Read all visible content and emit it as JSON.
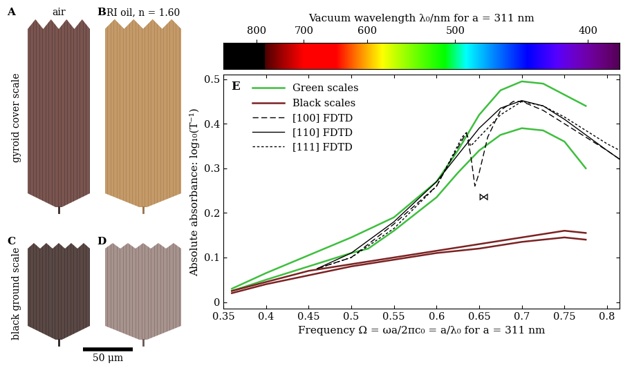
{
  "panels": [
    {
      "label": "A",
      "caption": "air"
    },
    {
      "label": "B",
      "caption": "RI oil, n = 1.60"
    },
    {
      "label": "C"
    },
    {
      "label": "D"
    }
  ],
  "row_labels": [
    "gyroid cover scale",
    "black ground scale"
  ],
  "scale_bar": "50 μm",
  "chart_data": {
    "type": "line",
    "panel_label": "E",
    "xlabel": "Frequency Ω = ωa/2πc₀ = a/λ₀ for a = 311 nm",
    "ylabel": "Absolute absorbance: log₁₀(T⁻¹)",
    "xlim": [
      0.35,
      0.815
    ],
    "ylim": [
      -0.015,
      0.51
    ],
    "xticks": [
      0.35,
      0.4,
      0.45,
      0.5,
      0.55,
      0.6,
      0.65,
      0.7,
      0.75,
      0.8
    ],
    "yticks": [
      0,
      0.1,
      0.2,
      0.3,
      0.4,
      0.5
    ],
    "legend": "upper left",
    "colorbar": {
      "label": "Vacuum wavelength λ₀/nm for a = 311 nm",
      "a": 311,
      "ticks": [
        800,
        700,
        600,
        500,
        400
      ]
    },
    "series": [
      {
        "name": "Green scales",
        "color": "#3dbf3d",
        "line_style": "solid",
        "curves": [
          {
            "x": [
              0.36,
              0.4,
              0.45,
              0.5,
              0.55,
              0.6,
              0.625,
              0.65,
              0.675,
              0.7,
              0.725,
              0.75,
              0.775
            ],
            "values": [
              0.03,
              0.065,
              0.105,
              0.145,
              0.19,
              0.27,
              0.34,
              0.42,
              0.475,
              0.495,
              0.49,
              0.465,
              0.44
            ]
          },
          {
            "x": [
              0.36,
              0.4,
              0.45,
              0.5,
              0.52,
              0.55,
              0.6,
              0.625,
              0.65,
              0.675,
              0.7,
              0.725,
              0.75,
              0.775
            ],
            "values": [
              0.025,
              0.05,
              0.08,
              0.11,
              0.12,
              0.16,
              0.235,
              0.29,
              0.34,
              0.375,
              0.39,
              0.385,
              0.36,
              0.3
            ]
          }
        ]
      },
      {
        "name": "Black scales",
        "color": "#7b2222",
        "line_style": "solid",
        "curves": [
          {
            "x": [
              0.36,
              0.4,
              0.45,
              0.5,
              0.55,
              0.6,
              0.65,
              0.7,
              0.75,
              0.775
            ],
            "values": [
              0.025,
              0.045,
              0.07,
              0.085,
              0.1,
              0.115,
              0.13,
              0.145,
              0.16,
              0.155
            ]
          },
          {
            "x": [
              0.36,
              0.4,
              0.45,
              0.5,
              0.55,
              0.6,
              0.65,
              0.7,
              0.75,
              0.775
            ],
            "values": [
              0.02,
              0.04,
              0.06,
              0.08,
              0.095,
              0.11,
              0.12,
              0.135,
              0.145,
              0.14
            ]
          }
        ]
      },
      {
        "name": "[100] FDTD",
        "color": "#000000",
        "line_style": "dashed",
        "curves": [
          {
            "x": [
              0.46,
              0.5,
              0.55,
              0.6,
              0.62,
              0.635,
              0.64,
              0.645,
              0.65,
              0.66,
              0.675,
              0.69,
              0.7,
              0.725,
              0.75,
              0.775,
              0.8,
              0.815
            ],
            "values": [
              0.075,
              0.1,
              0.175,
              0.26,
              0.33,
              0.38,
              0.33,
              0.26,
              0.29,
              0.37,
              0.43,
              0.45,
              0.45,
              0.43,
              0.4,
              0.37,
              0.34,
              0.32
            ]
          }
        ]
      },
      {
        "name": "[110] FDTD",
        "color": "#000000",
        "line_style": "solid",
        "curves": [
          {
            "x": [
              0.46,
              0.5,
              0.55,
              0.6,
              0.625,
              0.65,
              0.675,
              0.7,
              0.725,
              0.75,
              0.775,
              0.8,
              0.815
            ],
            "values": [
              0.075,
              0.11,
              0.18,
              0.27,
              0.33,
              0.39,
              0.435,
              0.452,
              0.44,
              0.41,
              0.375,
              0.34,
              0.32
            ]
          }
        ]
      },
      {
        "name": "[111] FDTD",
        "color": "#000000",
        "line_style": "short_dashed",
        "curves": [
          {
            "x": [
              0.46,
              0.5,
              0.55,
              0.6,
              0.63,
              0.635,
              0.64,
              0.65,
              0.675,
              0.7,
              0.725,
              0.75,
              0.775,
              0.8,
              0.815
            ],
            "values": [
              0.075,
              0.1,
              0.165,
              0.26,
              0.37,
              0.38,
              0.35,
              0.37,
              0.42,
              0.45,
              0.44,
              0.415,
              0.385,
              0.355,
              0.34
            ]
          }
        ]
      }
    ],
    "annotations": [
      {
        "text": "⋈",
        "x": 0.655,
        "y": 0.235
      }
    ]
  }
}
